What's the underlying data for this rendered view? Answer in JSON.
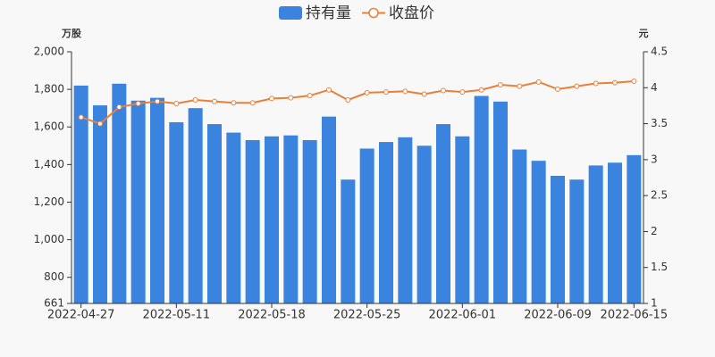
{
  "chart_data": {
    "type": "bar",
    "y_label": "万股",
    "y2_label": "元",
    "categories": [
      "2022-04-27",
      null,
      null,
      null,
      null,
      "2022-05-11",
      null,
      null,
      null,
      null,
      "2022-05-18",
      null,
      null,
      null,
      null,
      "2022-05-25",
      null,
      null,
      null,
      null,
      "2022-06-01",
      null,
      null,
      null,
      null,
      "2022-06-09",
      null,
      null,
      null,
      "2022-06-15"
    ],
    "series": [
      {
        "name": "持有量",
        "type": "bar",
        "color": "#3a84e0",
        "values": [
          1820,
          1715,
          1830,
          1740,
          1755,
          1625,
          1700,
          1615,
          1570,
          1530,
          1550,
          1555,
          1530,
          1655,
          1320,
          1485,
          1520,
          1545,
          1500,
          1615,
          1550,
          1765,
          1735,
          1480,
          1420,
          1340,
          1320,
          1395,
          1410,
          1450
        ]
      },
      {
        "name": "收盘价",
        "type": "line",
        "axis": "y2",
        "color": "#e8803a",
        "values": [
          3.59,
          3.5,
          3.73,
          3.78,
          3.81,
          3.78,
          3.83,
          3.81,
          3.79,
          3.79,
          3.85,
          3.86,
          3.89,
          3.97,
          3.83,
          3.93,
          3.94,
          3.95,
          3.91,
          3.96,
          3.94,
          3.97,
          4.04,
          4.02,
          4.08,
          3.98,
          4.02,
          4.06,
          4.07,
          4.09
        ]
      }
    ],
    "ylim": [
      661,
      2000
    ],
    "yticks": [
      661,
      800,
      {
        "value": 1000,
        "label": "1,000"
      },
      {
        "value": 1200,
        "label": "1,200"
      },
      {
        "value": 1400,
        "label": "1,400"
      },
      {
        "value": 1600,
        "label": "1,600"
      },
      {
        "value": 1800,
        "label": "1,800"
      },
      {
        "value": 2000,
        "label": "2,000"
      }
    ],
    "y2lim": [
      1,
      4.5
    ],
    "y2ticks": [
      1,
      1.5,
      2,
      2.5,
      3,
      3.5,
      4,
      4.5
    ],
    "legend": "top"
  }
}
